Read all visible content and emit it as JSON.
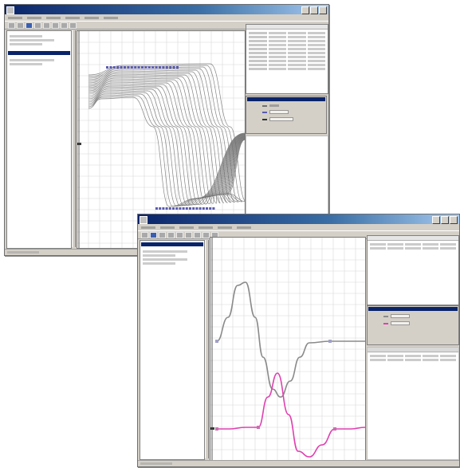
{
  "windows": [
    {
      "id": "window-a",
      "tree_rows": 4,
      "plot": {
        "series_color": "#707070",
        "marker_color": "#5a5ab0"
      },
      "legend_colors": [
        "#707070",
        "#5a5ab0",
        "#303030"
      ]
    },
    {
      "id": "window-b",
      "tree_rows": 4,
      "plot": {
        "series": [
          {
            "color": "#8a8a8a"
          },
          {
            "color": "#e040b0"
          }
        ]
      },
      "legend_colors": [
        "#8a8a8a",
        "#e040b0"
      ]
    }
  ],
  "colors": {
    "titlebar": "#0a246a",
    "window_bg": "#d4d0c8",
    "grid": "#cfcfcf",
    "marker": "#5a5ab0",
    "pink": "#e040b0"
  }
}
